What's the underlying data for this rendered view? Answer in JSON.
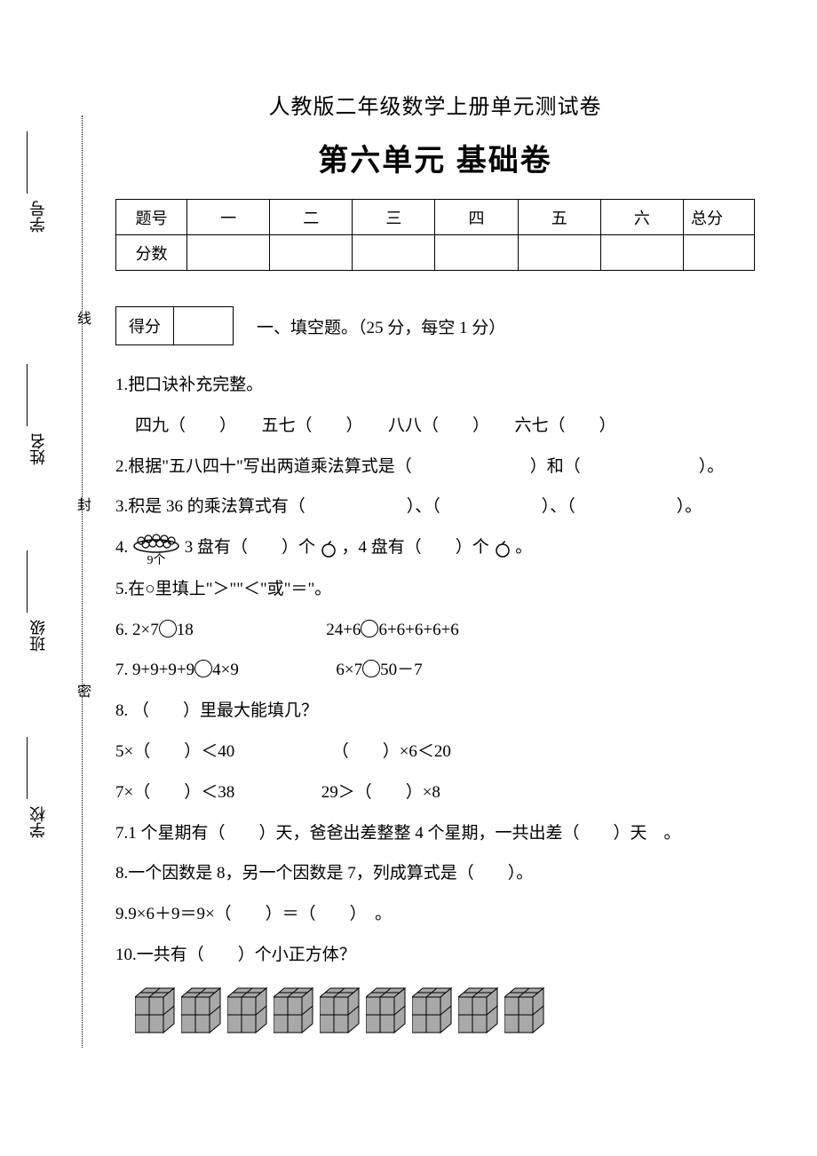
{
  "header": {
    "subtitle": "人教版二年级数学上册单元测试卷",
    "title": "第六单元 基础卷"
  },
  "score_table": {
    "row_label_1": "题号",
    "row_label_2": "分数",
    "cols": [
      "一",
      "二",
      "三",
      "四",
      "五",
      "六",
      "总分"
    ]
  },
  "binding": {
    "labels": [
      "学号",
      "姓名",
      "班级",
      "学校"
    ],
    "seal_chars": [
      "线",
      "封",
      "密"
    ]
  },
  "section1": {
    "score_label": "得分",
    "title": "一、填空题。（25 分，每空 1 分）"
  },
  "q1": {
    "stem": "1.把口诀补充完整。",
    "items": "四九（　　）　　五七（　　）　　八八（　　）　　六七（　　）"
  },
  "q2": "2.根据\"五八四十\"写出两道乘法算式是（　　　　　　　）和（　　　　　　　）。",
  "q3": "3.积是 36 的乘法算式有（　　　　　　）、（　　　　　　）、（　　　　　　）。",
  "q4": {
    "prefix": "4.",
    "plate_label": "9个",
    "mid1": "3 盘有（　　）个",
    "mid2": "，4 盘有（　　）个",
    "suffix": "。"
  },
  "q5": "5.在○里填上\"＞\"\"＜\"或\"＝\"。",
  "q6": {
    "left": "6. 2×7",
    "left_after": "18",
    "right": "24+6",
    "right_after": "6+6+6+6+6"
  },
  "q7": {
    "left": "7. 9+9+9+9",
    "left_after": "4×9",
    "right": "6×7",
    "right_after": "50－7"
  },
  "q8": {
    "stem": "8. （　　）里最大能填几？",
    "line1_left": "5×（　　）＜40",
    "line1_right": "（　　）×6＜20",
    "line2_left": "7×（　　）＜38",
    "line2_right": "29＞（　　）×8"
  },
  "q7b": "7.1 个星期有（　　）天，爸爸出差整整 4 个星期，一共出差（　　）天　。",
  "q8b": "8.一个因数是 8，另一个因数是 7，列成算式是（　　）。",
  "q9": "9.9×6＋9＝9×（　　）＝（　　）　。",
  "q10": "10.一共有（　　）个小正方体？",
  "cubes": {
    "count": 9,
    "fill": "#a8a8a8",
    "stroke": "#000000"
  }
}
